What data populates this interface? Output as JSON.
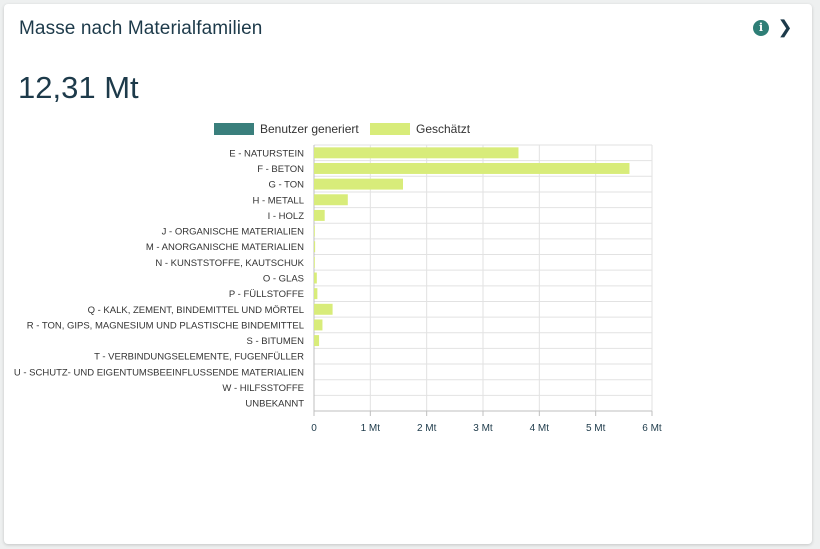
{
  "card": {
    "title": "Masse nach Materialfamilien",
    "total": "12,31 Mt",
    "info_icon": "info-icon",
    "chevron_icon": "chevron-right-icon"
  },
  "colors": {
    "user_generated": "#3a7f7c",
    "estimated": "#d8ec7a",
    "grid": "#e2e2e2",
    "axis": "#bfbfbf"
  },
  "chart_data": {
    "type": "bar",
    "orientation": "horizontal",
    "categories": [
      "E - NATURSTEIN",
      "F - BETON",
      "G - TON",
      "H - METALL",
      "I - HOLZ",
      "J - ORGANISCHE MATERIALIEN",
      "M - ANORGANISCHE MATERIALIEN",
      "N - KUNSTSTOFFE, KAUTSCHUK",
      "O - GLAS",
      "P - FÜLLSTOFFE",
      "Q - KALK, ZEMENT, BINDEMITTEL UND MÖRTEL",
      "R - TON, GIPS, MAGNESIUM UND PLASTISCHE BINDEMITTEL",
      "S - BITUMEN",
      "T - VERBINDUNGSELEMENTE, FUGENFÜLLER",
      "U - SCHUTZ- UND EIGENTUMSBEEINFLUSSENDE MATERIALIEN",
      "W - HILFSSTOFFE",
      "UNBEKANNT"
    ],
    "series": [
      {
        "name": "Benutzer generiert",
        "values": [
          0,
          0,
          0,
          0,
          0,
          0,
          0,
          0,
          0,
          0,
          0,
          0,
          0,
          0,
          0,
          0,
          0
        ]
      },
      {
        "name": "Geschätzt",
        "values": [
          3.63,
          5.6,
          1.58,
          0.6,
          0.19,
          0.01,
          0.02,
          0.01,
          0.05,
          0.06,
          0.33,
          0.15,
          0.09,
          0,
          0,
          0,
          0
        ]
      }
    ],
    "xlim": [
      0,
      6
    ],
    "xticks": [
      0,
      1,
      2,
      3,
      4,
      5,
      6
    ],
    "xtick_labels": [
      "0",
      "1 Mt",
      "2 Mt",
      "3 Mt",
      "4 Mt",
      "5 Mt",
      "6 Mt"
    ],
    "stacked": true,
    "grid": true,
    "legend": "top"
  }
}
